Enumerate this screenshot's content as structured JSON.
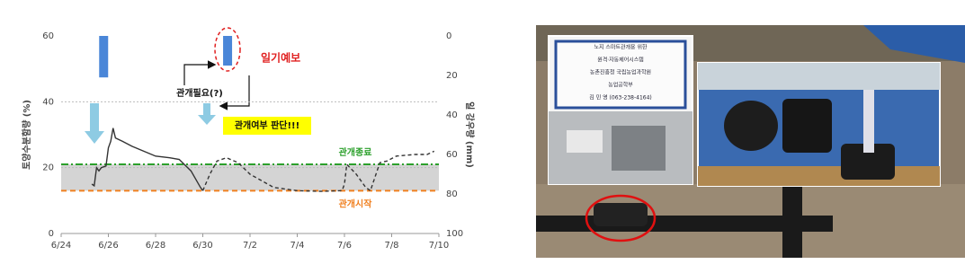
{
  "chart_data": {
    "type": "combo",
    "y_label": "토양수분함량 (%)",
    "y2_label": "일 강우량 (mm)",
    "xlim": [
      0,
      16
    ],
    "xticks": [
      {
        "value": 0,
        "label": "6/24"
      },
      {
        "value": 2,
        "label": "6/26"
      },
      {
        "value": 4,
        "label": "6/28"
      },
      {
        "value": 6,
        "label": "6/30"
      },
      {
        "value": 8,
        "label": "7/2"
      },
      {
        "value": 10,
        "label": "7/4"
      },
      {
        "value": 12,
        "label": "7/6"
      },
      {
        "value": 14,
        "label": "7/8"
      },
      {
        "value": 16,
        "label": "7/10"
      }
    ],
    "ylim": [
      0,
      60
    ],
    "yticks": [
      0,
      20,
      40,
      60
    ],
    "y2lim": [
      100,
      0
    ],
    "y2ticks": [
      0,
      20,
      40,
      60,
      80,
      100
    ],
    "grid": true,
    "series": [
      {
        "type": "line",
        "dash": false,
        "color": "#333333",
        "x": [
          1.3,
          1.4,
          1.5,
          1.6,
          1.7,
          1.9,
          2.0,
          2.1,
          2.2,
          2.3,
          2.6,
          3,
          3.5,
          4,
          4.6,
          5,
          5.5,
          5.9,
          6
        ],
        "values": [
          15,
          14.5,
          20,
          19,
          20,
          20.5,
          26,
          28,
          32,
          29,
          28,
          26.5,
          25,
          23.5,
          23,
          22.5,
          19,
          14,
          13
        ]
      },
      {
        "type": "line",
        "dash": true,
        "color": "#333333",
        "x": [
          6,
          6.3,
          6.6,
          7,
          7.5,
          8,
          8.5,
          9,
          9.5,
          10,
          11,
          11.9,
          12,
          12.1,
          12.5,
          12.9,
          13.1,
          13.5,
          13.8,
          14.2,
          15,
          15.5,
          15.8
        ],
        "values": [
          13,
          18,
          22,
          23,
          21.5,
          18,
          16,
          14,
          13.5,
          13,
          12.8,
          13,
          15,
          21,
          18,
          14,
          13,
          21.5,
          22,
          23.5,
          24,
          24,
          25
        ]
      },
      {
        "type": "bar",
        "axis": "y2",
        "color": "#4a86d8",
        "x": [
          1.8,
          7.05
        ],
        "values": [
          21,
          15
        ]
      }
    ],
    "reference_lines": [
      {
        "label": "관개종료",
        "value": 21,
        "color": "#2ca02c"
      },
      {
        "label": "관개시작",
        "value": 13,
        "color": "#f08020"
      }
    ],
    "annotations": {
      "forecast": "일기예보",
      "need": "관개필요(?)",
      "decide": "관개여부 판단!!!"
    }
  },
  "photo": {
    "sign_lines": [
      "노지 스마트관개용 위한",
      "원격·자동제어시스템",
      "농촌진흥청 국립농업과학원",
      "농업공학부",
      "김 민 영 (063-238-4164)"
    ]
  }
}
